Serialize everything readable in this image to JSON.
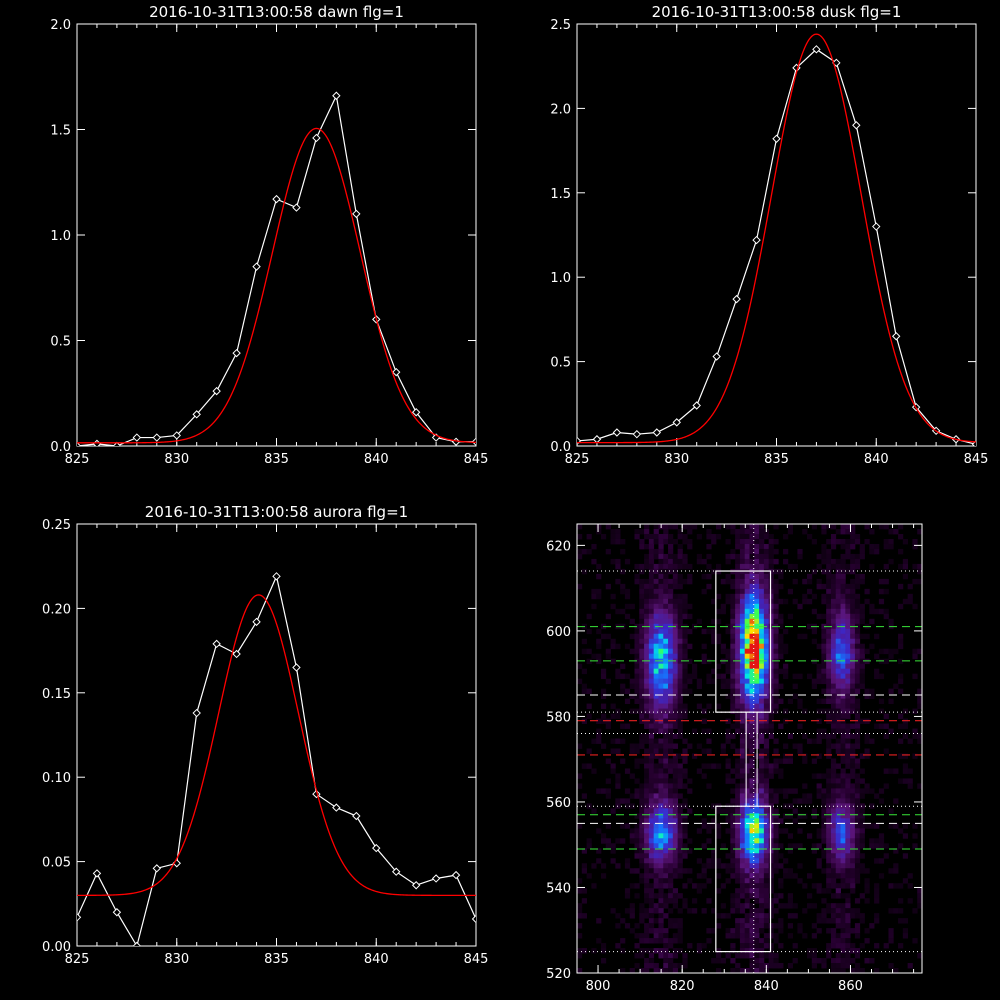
{
  "chart_data": [
    {
      "type": "line",
      "title": "2016-10-31T13:00:58 dawn flg=1",
      "xlim": [
        825,
        845
      ],
      "ylim": [
        0,
        2.0
      ],
      "xticks": [
        "825",
        "830",
        "835",
        "840",
        "845"
      ],
      "yticks": [
        "0.0",
        "0.5",
        "1.0",
        "1.5",
        "2.0"
      ],
      "series": [
        {
          "style": "data",
          "color": "#ffffff",
          "marker": "diamond",
          "x": [
            825,
            826,
            827,
            828,
            829,
            830,
            831,
            832,
            833,
            834,
            835,
            836,
            837,
            838,
            839,
            840,
            841,
            842,
            843,
            844,
            845
          ],
          "y": [
            0.0,
            0.01,
            0.0,
            0.04,
            0.04,
            0.05,
            0.15,
            0.26,
            0.44,
            0.85,
            1.17,
            1.13,
            1.46,
            1.66,
            1.1,
            0.6,
            0.35,
            0.16,
            0.04,
            0.02,
            0.02
          ]
        },
        {
          "style": "fit",
          "color": "#ff0000",
          "gauss": {
            "amp": 1.49,
            "center": 837.0,
            "sigma": 2.2,
            "offset": 0.015
          }
        }
      ]
    },
    {
      "type": "line",
      "title": "2016-10-31T13:00:58 dusk flg=1",
      "xlim": [
        825,
        845
      ],
      "ylim": [
        0,
        2.5
      ],
      "xticks": [
        "825",
        "830",
        "835",
        "840",
        "845"
      ],
      "yticks": [
        "0.0",
        "0.5",
        "1.0",
        "1.5",
        "2.0",
        "2.5"
      ],
      "series": [
        {
          "style": "data",
          "color": "#ffffff",
          "marker": "diamond",
          "x": [
            825,
            826,
            827,
            828,
            829,
            830,
            831,
            832,
            833,
            834,
            835,
            836,
            837,
            838,
            839,
            840,
            841,
            842,
            843,
            844,
            845
          ],
          "y": [
            0.03,
            0.04,
            0.08,
            0.07,
            0.08,
            0.14,
            0.24,
            0.53,
            0.87,
            1.22,
            1.82,
            2.24,
            2.35,
            2.27,
            1.9,
            1.3,
            0.65,
            0.23,
            0.09,
            0.04,
            0.01
          ]
        },
        {
          "style": "fit",
          "color": "#ff0000",
          "gauss": {
            "amp": 2.42,
            "center": 837.0,
            "sigma": 2.25,
            "offset": 0.02
          }
        }
      ]
    },
    {
      "type": "line",
      "title": "2016-10-31T13:00:58 aurora flg=1",
      "xlim": [
        825,
        845
      ],
      "ylim": [
        0,
        0.25
      ],
      "xticks": [
        "825",
        "830",
        "835",
        "840",
        "845"
      ],
      "yticks": [
        "0.00",
        "0.05",
        "0.10",
        "0.15",
        "0.20",
        "0.25"
      ],
      "series": [
        {
          "style": "data",
          "color": "#ffffff",
          "marker": "diamond",
          "x": [
            825,
            826,
            827,
            828,
            829,
            830,
            831,
            832,
            833,
            834,
            835,
            836,
            837,
            838,
            839,
            840,
            841,
            842,
            843,
            844,
            845
          ],
          "y": [
            0.017,
            0.043,
            0.02,
            0.0,
            0.046,
            0.049,
            0.138,
            0.179,
            0.173,
            0.192,
            0.219,
            0.165,
            0.09,
            0.082,
            0.077,
            0.058,
            0.044,
            0.036,
            0.04,
            0.042,
            0.016
          ]
        },
        {
          "style": "fit",
          "color": "#ff0000",
          "gauss": {
            "amp": 0.178,
            "center": 834.1,
            "sigma": 2.0,
            "offset": 0.03
          }
        }
      ]
    },
    {
      "type": "heatmap",
      "title": "",
      "xlim": [
        795,
        877
      ],
      "ylim": [
        520,
        625
      ],
      "xticks": [
        "800",
        "820",
        "840",
        "860"
      ],
      "yticks": [
        "520",
        "540",
        "560",
        "580",
        "600",
        "620"
      ],
      "colormap": "rainbow-on-black",
      "blobs": [
        {
          "x": 837,
          "y": 596,
          "sx": 2.2,
          "sy": 8,
          "amp": 1.0
        },
        {
          "x": 837,
          "y": 553,
          "sx": 2.2,
          "sy": 5,
          "amp": 0.7
        },
        {
          "x": 815,
          "y": 593,
          "sx": 2.4,
          "sy": 7,
          "amp": 0.55
        },
        {
          "x": 815,
          "y": 553,
          "sx": 2.4,
          "sy": 4.5,
          "amp": 0.48
        },
        {
          "x": 858,
          "y": 595,
          "sx": 2.0,
          "sy": 6,
          "amp": 0.4
        },
        {
          "x": 858,
          "y": 553,
          "sx": 2.0,
          "sy": 4.5,
          "amp": 0.35
        }
      ],
      "boxes": [
        {
          "x0": 828,
          "x1": 841,
          "y0": 581,
          "y1": 614
        },
        {
          "x0": 828,
          "x1": 841,
          "y0": 525,
          "y1": 559
        }
      ],
      "dotted_h": [
        614,
        581,
        576,
        559,
        525
      ],
      "dotted_v": [
        837
      ],
      "green_dashed_h": [
        601,
        593,
        557,
        549
      ],
      "white_dashed_h": [
        585,
        555
      ],
      "red_dashed_h": [
        579,
        571
      ],
      "colors": {
        "green": "#39e639",
        "red": "#e62020",
        "white": "#ffffff"
      }
    }
  ]
}
